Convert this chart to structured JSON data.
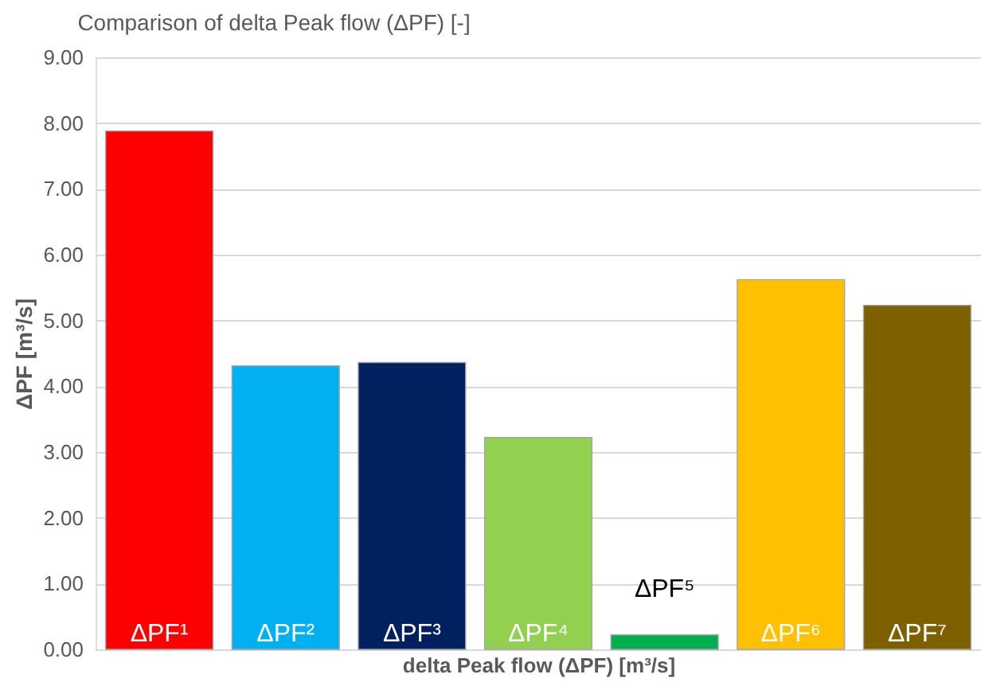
{
  "chart_data": {
    "type": "bar",
    "title": "Comparison of delta Peak flow (ΔPF) [-]",
    "xlabel": "delta Peak flow (ΔPF) [m³/s]",
    "ylabel": "ΔPF [m³/s]",
    "categories": [
      "ΔPF¹",
      "ΔPF²",
      "ΔPF³",
      "ΔPF⁴",
      "ΔPF⁵",
      "ΔPF⁶",
      "ΔPF⁷"
    ],
    "values": [
      7.88,
      4.31,
      4.36,
      3.22,
      0.22,
      5.62,
      5.23
    ],
    "colors": [
      "#ff0000",
      "#00b0f0",
      "#002060",
      "#92d050",
      "#00b050",
      "#ffc000",
      "#7f6000"
    ],
    "ylim": [
      0,
      9
    ],
    "yticks": [
      {
        "value": 0,
        "label": "0.00"
      },
      {
        "value": 1,
        "label": "1.00"
      },
      {
        "value": 2,
        "label": "2.00"
      },
      {
        "value": 3,
        "label": "3.00"
      },
      {
        "value": 4,
        "label": "4.00"
      },
      {
        "value": 5,
        "label": "5.00"
      },
      {
        "value": 6,
        "label": "6.00"
      },
      {
        "value": 7,
        "label": "7.00"
      },
      {
        "value": 8,
        "label": "8.00"
      },
      {
        "value": 9,
        "label": "9.00"
      }
    ],
    "grid": "y"
  }
}
